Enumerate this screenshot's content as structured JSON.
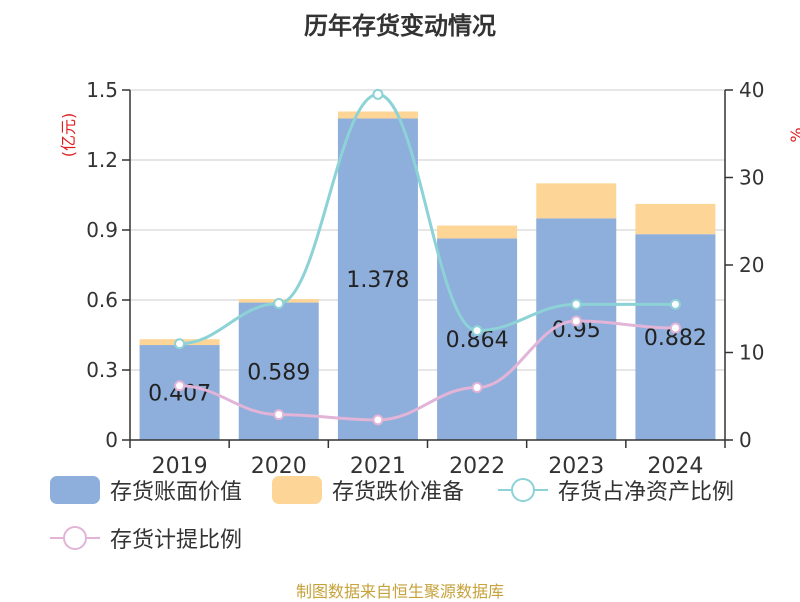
{
  "title": "历年存货变动情况",
  "source": "制图数据来自恒生聚源数据库",
  "chart_data": {
    "type": "bar",
    "categories": [
      "2019",
      "2020",
      "2021",
      "2022",
      "2023",
      "2024"
    ],
    "y_left": {
      "label": "(亿元)",
      "ylim": [
        0,
        1.5
      ],
      "ticks": [
        "0",
        "0.3",
        "0.6",
        "0.9",
        "1.2",
        "1.5"
      ]
    },
    "y_right": {
      "label": "%",
      "ylim": [
        0,
        40
      ],
      "ticks": [
        "0",
        "10",
        "20",
        "30",
        "40"
      ]
    },
    "grid": true,
    "legend_position": "bottom",
    "series": [
      {
        "name": "存货账面价值",
        "kind": "bar",
        "stack": "inv",
        "axis": "left",
        "color": "#8eaedb",
        "values": [
          0.407,
          0.589,
          1.378,
          0.864,
          0.95,
          0.882
        ],
        "labels": [
          "0.407",
          "0.589",
          "1.378",
          "0.864",
          "0.95",
          "0.882"
        ]
      },
      {
        "name": "存货跌价准备",
        "kind": "bar",
        "stack": "inv",
        "axis": "left",
        "color": "#fdd697",
        "values": [
          0.025,
          0.015,
          0.03,
          0.055,
          0.15,
          0.13
        ]
      },
      {
        "name": "存货占净资产比例",
        "kind": "line",
        "axis": "right",
        "color": "#8cd2d6",
        "values": [
          11,
          15.6,
          39.5,
          12.5,
          15.5,
          15.5
        ]
      },
      {
        "name": "存货计提比例",
        "kind": "line",
        "axis": "right",
        "color": "#e2b4d8",
        "values": [
          6.2,
          2.9,
          2.3,
          6.0,
          13.6,
          12.8
        ]
      }
    ]
  }
}
